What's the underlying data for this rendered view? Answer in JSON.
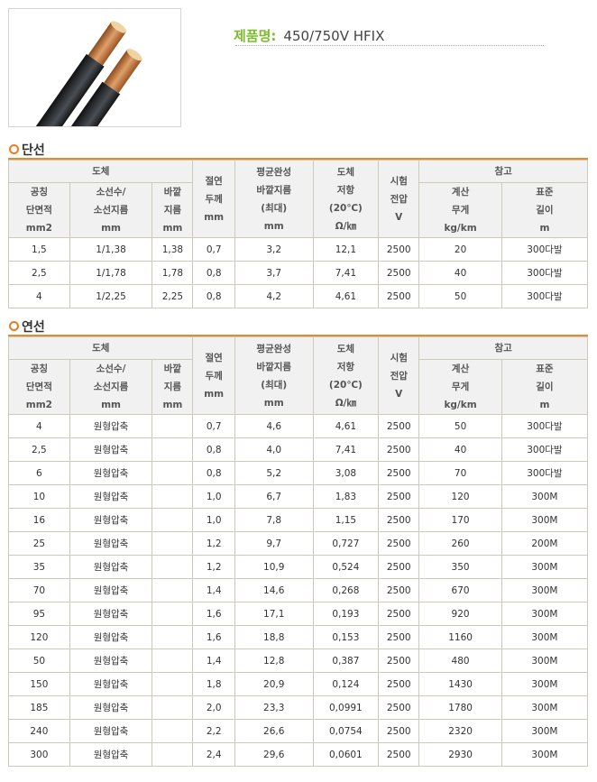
{
  "product": {
    "label": "제품명:",
    "name": "450/750V HFIX"
  },
  "header": {
    "conductor": "도체",
    "nominal": [
      "공칭",
      "단면적",
      "mm2"
    ],
    "strands": [
      "소선수/",
      "소선지름",
      "mm"
    ],
    "outer": [
      "바깥",
      "지름",
      "mm"
    ],
    "insulation": [
      "절연",
      "두께",
      "mm"
    ],
    "avg_outer": [
      "평균완성",
      "바깥지름",
      "(최대)",
      "mm"
    ],
    "resistance": [
      "도체",
      "저항",
      "(20℃)",
      "Ω/㎞"
    ],
    "test_voltage": [
      "시험",
      "전압",
      "V"
    ],
    "reference": "참고",
    "weight": [
      "계산",
      "무게",
      "kg/km"
    ],
    "length": [
      "표준",
      "길이",
      "m"
    ]
  },
  "sections": [
    {
      "title": "단선",
      "rows": [
        [
          "1,5",
          "1/1,38",
          "1,38",
          "0,7",
          "3,2",
          "12,1",
          "2500",
          "20",
          "300다발"
        ],
        [
          "2,5",
          "1/1,78",
          "1,78",
          "0,8",
          "3,7",
          "7,41",
          "2500",
          "40",
          "300다발"
        ],
        [
          "4",
          "1/2,25",
          "2,25",
          "0,8",
          "4,2",
          "4,61",
          "2500",
          "50",
          "300다발"
        ]
      ]
    },
    {
      "title": "연선",
      "rows": [
        [
          "4",
          "원형압축",
          "",
          "0,7",
          "4,6",
          "4,61",
          "2500",
          "50",
          "300다발"
        ],
        [
          "2,5",
          "원형압축",
          "",
          "0,8",
          "4,0",
          "7,41",
          "2500",
          "40",
          "300다발"
        ],
        [
          "6",
          "원형압축",
          "",
          "0,8",
          "5,2",
          "3,08",
          "2500",
          "70",
          "300다발"
        ],
        [
          "10",
          "원형압축",
          "",
          "1,0",
          "6,7",
          "1,83",
          "2500",
          "120",
          "300M"
        ],
        [
          "16",
          "원형압축",
          "",
          "1,0",
          "7,8",
          "1,15",
          "2500",
          "170",
          "300M"
        ],
        [
          "25",
          "원형압축",
          "",
          "1,2",
          "9,7",
          "0,727",
          "2500",
          "260",
          "200M"
        ],
        [
          "35",
          "원형압축",
          "",
          "1,2",
          "10,9",
          "0,524",
          "2500",
          "350",
          "300M"
        ],
        [
          "70",
          "원형압축",
          "",
          "1,4",
          "14,6",
          "0,268",
          "2500",
          "670",
          "300M"
        ],
        [
          "95",
          "원형압축",
          "",
          "1,6",
          "17,1",
          "0,193",
          "2500",
          "920",
          "300M"
        ],
        [
          "120",
          "원형압축",
          "",
          "1,6",
          "18,8",
          "0,153",
          "2500",
          "1160",
          "300M"
        ],
        [
          "50",
          "원형압축",
          "",
          "1,4",
          "12,8",
          "0,387",
          "2500",
          "480",
          "300M"
        ],
        [
          "150",
          "원형압축",
          "",
          "1,8",
          "20,9",
          "0,124",
          "2500",
          "1430",
          "300M"
        ],
        [
          "185",
          "원형압축",
          "",
          "2,0",
          "23,3",
          "0,0991",
          "2500",
          "1780",
          "300M"
        ],
        [
          "240",
          "원형압축",
          "",
          "2,2",
          "26,6",
          "0,0754",
          "2500",
          "2320",
          "300M"
        ],
        [
          "300",
          "원형압축",
          "",
          "2,4",
          "29,6",
          "0,0601",
          "2500",
          "2930",
          "300M"
        ]
      ]
    }
  ],
  "colors": {
    "accent": "#e8892b",
    "label_green": "#7dbb2c",
    "header_bg": "#f1f1f1",
    "border": "#cdc9bc"
  }
}
